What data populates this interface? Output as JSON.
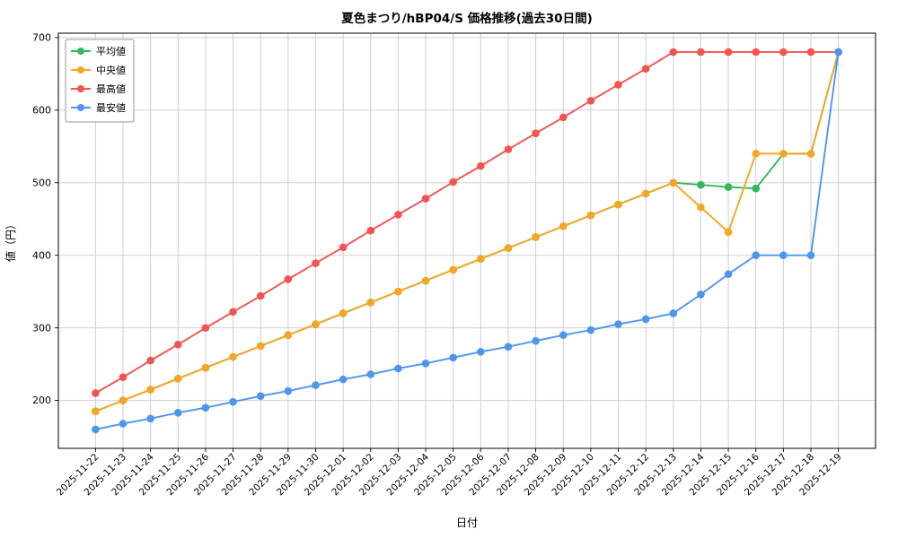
{
  "chart_data": {
    "type": "line",
    "title": "夏色まつり/hBP04/S 価格推移(過去30日間)",
    "xlabel": "日付",
    "ylabel": "値（円）",
    "grid": true,
    "legend_position": "upper-left",
    "ylim": [
      134,
      706
    ],
    "yticks": [
      200,
      300,
      400,
      500,
      600,
      700
    ],
    "x": [
      "2025-11-22",
      "2025-11-23",
      "2025-11-24",
      "2025-11-25",
      "2025-11-26",
      "2025-11-27",
      "2025-11-28",
      "2025-11-29",
      "2025-11-30",
      "2025-12-01",
      "2025-12-02",
      "2025-12-03",
      "2025-12-04",
      "2025-12-05",
      "2025-12-06",
      "2025-12-07",
      "2025-12-08",
      "2025-12-09",
      "2025-12-10",
      "2025-12-11",
      "2025-12-12",
      "2025-12-13",
      "2025-12-14",
      "2025-12-15",
      "2025-12-16",
      "2025-12-17",
      "2025-12-18",
      "2025-12-19"
    ],
    "series": [
      {
        "key": "average",
        "name": "平均値",
        "color": "#34b65c",
        "values": [
          185,
          200,
          215,
          230,
          245,
          260,
          275,
          290,
          305,
          320,
          335,
          350,
          365,
          380,
          395,
          410,
          425,
          440,
          455,
          470,
          485,
          500,
          497,
          494,
          492,
          540,
          540,
          680
        ]
      },
      {
        "key": "median",
        "name": "中央値",
        "color": "#f5a623",
        "values": [
          185,
          200,
          215,
          230,
          245,
          260,
          275,
          290,
          305,
          320,
          335,
          350,
          365,
          380,
          395,
          410,
          425,
          440,
          455,
          470,
          485,
          500,
          466,
          432,
          540,
          540,
          540,
          680
        ]
      },
      {
        "key": "max",
        "name": "最高値",
        "color": "#f4534f",
        "values": [
          210,
          232,
          255,
          277,
          300,
          322,
          344,
          367,
          389,
          411,
          434,
          456,
          478,
          501,
          523,
          546,
          568,
          590,
          613,
          635,
          657,
          680,
          680,
          680,
          680,
          680,
          680,
          680
        ]
      },
      {
        "key": "min",
        "name": "最安値",
        "color": "#4d96f0",
        "values": [
          160,
          168,
          175,
          183,
          190,
          198,
          206,
          213,
          221,
          229,
          236,
          244,
          251,
          259,
          267,
          274,
          282,
          290,
          297,
          305,
          312,
          320,
          346,
          374,
          400,
          400,
          400,
          680
        ]
      }
    ]
  },
  "style": {
    "grid_color": "#cfcfcf",
    "spine_color": "#000000",
    "legend_border": "#999999",
    "background": "#ffffff"
  }
}
